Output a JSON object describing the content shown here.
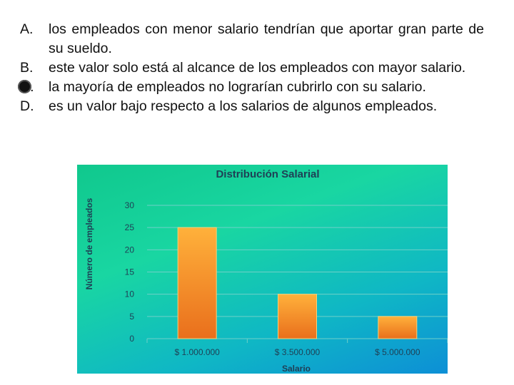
{
  "question": {
    "options": [
      {
        "letter": "A.",
        "text": "los empleados con menor salario tendrían que aportar gran parte de su sueldo."
      },
      {
        "letter": "B.",
        "text": "este valor solo está al alcance de los empleados con mayor salario."
      },
      {
        "letter": "C.",
        "text": "la mayoría de empleados no lograrían cubrirlo con su salario.",
        "selected": true
      },
      {
        "letter": "D.",
        "text": "es un valor bajo respecto a los salarios de algunos empleados."
      }
    ]
  },
  "chart_data": {
    "type": "bar",
    "title": "Distribución Salarial",
    "xlabel": "Salario",
    "ylabel": "Número de empleados",
    "categories": [
      "$ 1.000.000",
      "$ 3.500.000",
      "$ 5.000.000"
    ],
    "values": [
      25,
      10,
      5
    ],
    "ylim": [
      0,
      30
    ],
    "yticks": [
      0,
      5,
      10,
      15,
      20,
      25,
      30
    ],
    "grid": true,
    "legend": "none",
    "colors": {
      "bar_top": "#ffb13b",
      "bar_bottom": "#e96f1c",
      "grid": "#6fd0c8",
      "axis": "#2f6f70"
    }
  }
}
